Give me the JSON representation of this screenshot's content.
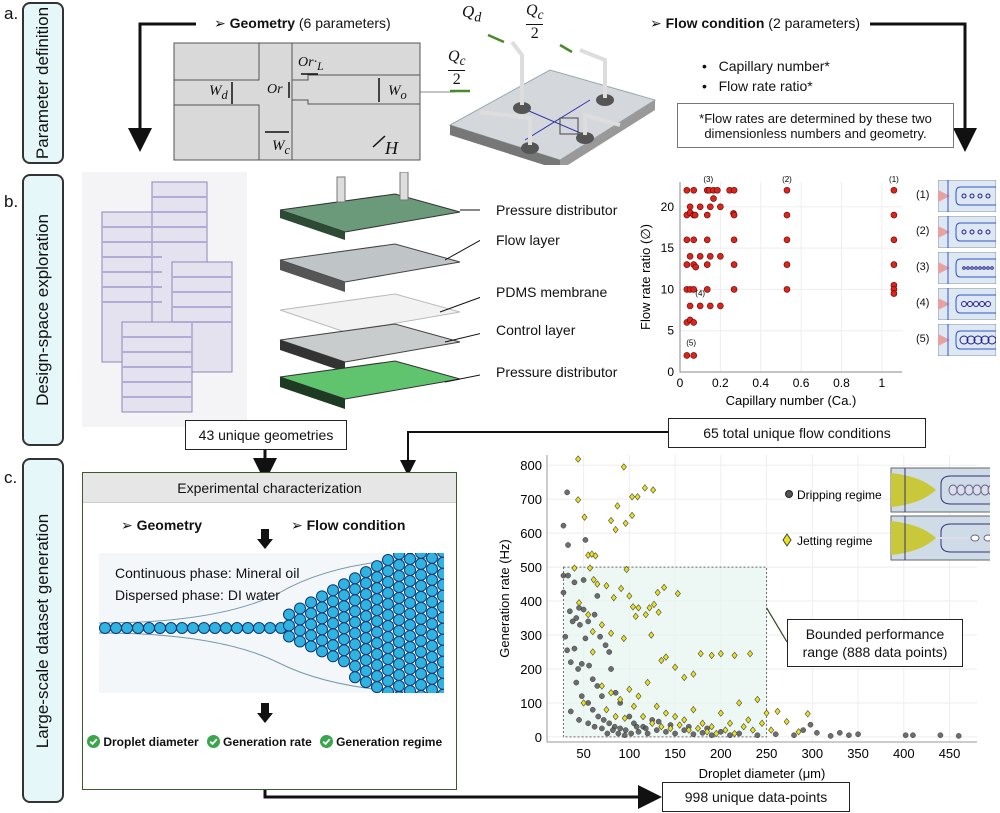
{
  "panels": {
    "a": "a.",
    "b": "b.",
    "c": "c."
  },
  "side_labels": {
    "a": "Parameter definition",
    "b": "Design-space exploration",
    "c": "Large-scale dataset generation"
  },
  "geometry": {
    "heading_bold": "Geometry",
    "heading_rest": " (6 parameters)",
    "symbols": {
      "wd": "W",
      "wd_sub": "d",
      "or": "Or",
      "orl": "Or",
      "orl_sub": "L",
      "wo": "W",
      "wo_sub": "o",
      "wc": "W",
      "wc_sub": "c",
      "h": "H"
    }
  },
  "chip": {
    "qd": "Q",
    "qd_sub": "d",
    "qc": "Q",
    "qc_sub": "c",
    "two": "2"
  },
  "flow": {
    "heading_bold": "Flow condition",
    "heading_rest": " (2 parameters)",
    "bullets": [
      "Capillary number*",
      "Flow rate ratio*"
    ],
    "note": "*Flow rates are determined by these two dimensionless numbers and geometry."
  },
  "layers": [
    "Pressure distributor",
    "Flow layer",
    "PDMS membrane",
    "Control layer",
    "Pressure distributor"
  ],
  "arrows": {
    "geometries": "43 unique geometries",
    "flow_conditions": "65 total unique flow conditions",
    "datapoints": "998 unique data-points"
  },
  "experiment": {
    "title": "Experimental characterization",
    "geometry": "Geometry",
    "flow": "Flow condition",
    "continuous": "Continuous phase: Mineral oil",
    "dispersed": "Dispersed phase: DI water",
    "outputs": [
      "Droplet diameter",
      "Generation rate",
      "Generation regime"
    ],
    "check_color": "#3aa54a"
  },
  "callout": "Bounded performance range (888 data points)",
  "inset_labels": [
    "(1)",
    "(2)",
    "(3)",
    "(4)",
    "(5)"
  ],
  "chart_data": [
    {
      "type": "scatter",
      "xlabel": "Capillary number (Ca.)",
      "ylabel": "Flow rate ratio (∅)",
      "xlim": [
        0,
        1.1
      ],
      "ylim": [
        0,
        23
      ],
      "xticks": [
        0,
        0.2,
        0.4,
        0.6,
        0.8,
        1
      ],
      "xtick_labels": [
        "0",
        "0.2",
        "0.4",
        "0.6",
        "0.8",
        "1"
      ],
      "yticks": [
        0,
        5,
        10,
        15,
        20
      ],
      "grid": true,
      "color": "#d8261c",
      "points": [
        [
          0.034,
          22
        ],
        [
          0.034,
          19
        ],
        [
          0.034,
          16
        ],
        [
          0.034,
          13
        ],
        [
          0.034,
          10
        ],
        [
          0.034,
          6
        ],
        [
          0.034,
          2
        ],
        [
          0.05,
          20
        ],
        [
          0.05,
          19.3
        ],
        [
          0.05,
          14
        ],
        [
          0.05,
          10
        ],
        [
          0.05,
          8
        ],
        [
          0.05,
          6.3
        ],
        [
          0.068,
          22
        ],
        [
          0.068,
          19
        ],
        [
          0.068,
          16
        ],
        [
          0.068,
          13
        ],
        [
          0.068,
          10
        ],
        [
          0.068,
          6
        ],
        [
          0.068,
          2
        ],
        [
          0.075,
          19
        ],
        [
          0.078,
          12.7
        ],
        [
          0.1,
          20
        ],
        [
          0.1,
          14
        ],
        [
          0.1,
          8
        ],
        [
          0.135,
          22
        ],
        [
          0.135,
          19
        ],
        [
          0.135,
          16
        ],
        [
          0.135,
          13
        ],
        [
          0.135,
          10
        ],
        [
          0.145,
          22
        ],
        [
          0.15,
          20
        ],
        [
          0.15,
          14
        ],
        [
          0.15,
          8
        ],
        [
          0.166,
          21
        ],
        [
          0.166,
          22
        ],
        [
          0.185,
          22
        ],
        [
          0.2,
          20
        ],
        [
          0.2,
          14
        ],
        [
          0.2,
          8
        ],
        [
          0.246,
          22
        ],
        [
          0.268,
          22
        ],
        [
          0.265,
          19.2
        ],
        [
          0.268,
          19
        ],
        [
          0.268,
          16
        ],
        [
          0.268,
          13
        ],
        [
          0.268,
          10
        ],
        [
          0.53,
          22
        ],
        [
          0.53,
          19
        ],
        [
          0.53,
          16
        ],
        [
          0.53,
          13
        ],
        [
          0.53,
          10
        ],
        [
          1.06,
          22
        ],
        [
          1.06,
          19
        ],
        [
          1.06,
          16
        ],
        [
          1.06,
          13
        ],
        [
          1.06,
          10.5
        ],
        [
          1.06,
          10
        ],
        [
          1.06,
          9.5
        ]
      ],
      "annotations": [
        {
          "text": "(3)",
          "x": 0.14,
          "y": 23
        },
        {
          "text": "(2)",
          "x": 0.53,
          "y": 23
        },
        {
          "text": "(1)",
          "x": 1.06,
          "y": 23
        },
        {
          "text": "(4)",
          "x": 0.1,
          "y": 9.2
        },
        {
          "text": "(5)",
          "x": 0.055,
          "y": 3.2
        }
      ]
    },
    {
      "type": "scatter",
      "xlabel": "Droplet diameter (μm)",
      "ylabel": "Generation rate (Hz)",
      "xlim": [
        10,
        480
      ],
      "ylim": [
        -15,
        830
      ],
      "xticks": [
        50,
        100,
        150,
        200,
        250,
        300,
        350,
        400,
        450
      ],
      "yticks": [
        0,
        100,
        200,
        300,
        400,
        500,
        600,
        700,
        800
      ],
      "grid": true,
      "bounded_range": {
        "x": [
          28,
          250
        ],
        "y": [
          0,
          500
        ]
      },
      "series": [
        {
          "name": "Dripping regime",
          "color": "#555555",
          "marker": "circle",
          "points": [
            [
              28,
              622
            ],
            [
              32,
              720
            ],
            [
              33,
              565
            ],
            [
              52,
              580
            ],
            [
              28,
              475
            ],
            [
              28,
              425
            ],
            [
              33,
              475
            ],
            [
              40,
              455
            ],
            [
              50,
              462
            ],
            [
              45,
              380
            ],
            [
              50,
              375
            ],
            [
              35,
              370
            ],
            [
              38,
              340
            ],
            [
              42,
              350
            ],
            [
              46,
              330
            ],
            [
              55,
              340
            ],
            [
              52,
              290
            ],
            [
              62,
              360
            ],
            [
              65,
              415
            ],
            [
              68,
              295
            ],
            [
              30,
              295
            ],
            [
              32,
              255
            ],
            [
              36,
              220
            ],
            [
              40,
              260
            ],
            [
              44,
              200
            ],
            [
              48,
              215
            ],
            [
              56,
              210
            ],
            [
              60,
              170
            ],
            [
              65,
              150
            ],
            [
              70,
              120
            ],
            [
              74,
              270
            ],
            [
              78,
              250
            ],
            [
              80,
              200
            ],
            [
              85,
              130
            ],
            [
              90,
              100
            ],
            [
              36,
              75
            ],
            [
              42,
              160
            ],
            [
              48,
              120
            ],
            [
              55,
              100
            ],
            [
              60,
              80
            ],
            [
              66,
              60
            ],
            [
              72,
              50
            ],
            [
              78,
              40
            ],
            [
              84,
              30
            ],
            [
              90,
              25
            ],
            [
              96,
              20
            ],
            [
              100,
              60
            ],
            [
              105,
              40
            ],
            [
              110,
              15
            ],
            [
              115,
              30
            ],
            [
              120,
              10
            ],
            [
              125,
              50
            ],
            [
              130,
              20
            ],
            [
              140,
              15
            ],
            [
              150,
              10
            ],
            [
              160,
              20
            ],
            [
              170,
              8
            ],
            [
              180,
              12
            ],
            [
              190,
              5
            ],
            [
              200,
              15
            ],
            [
              210,
              5
            ],
            [
              220,
              10
            ],
            [
              240,
              5
            ],
            [
              260,
              8
            ],
            [
              280,
              5
            ],
            [
              290,
              20
            ],
            [
              298,
              36
            ],
            [
              305,
              12
            ],
            [
              320,
              3
            ],
            [
              330,
              12
            ],
            [
              340,
              5
            ],
            [
              350,
              8
            ],
            [
              402,
              5
            ],
            [
              410,
              5
            ],
            [
              440,
              5
            ],
            [
              460,
              3
            ],
            [
              45,
              50
            ],
            [
              55,
              40
            ],
            [
              62,
              30
            ],
            [
              70,
              25
            ],
            [
              76,
              10
            ],
            [
              82,
              20
            ],
            [
              88,
              10
            ],
            [
              95,
              5
            ],
            [
              102,
              10
            ],
            [
              108,
              30
            ],
            [
              118,
              25
            ],
            [
              132,
              45
            ],
            [
              145,
              35
            ],
            [
              165,
              30
            ],
            [
              185,
              25
            ]
          ]
        },
        {
          "name": "Jetting regime",
          "color": "#e8e21a",
          "marker": "diamond",
          "points": [
            [
              44,
              818
            ],
            [
              94,
              795
            ],
            [
              44,
              698
            ],
            [
              117,
              733
            ],
            [
              126,
              727
            ],
            [
              103,
              707
            ],
            [
              109,
              707
            ],
            [
              87,
              680
            ],
            [
              51,
              647
            ],
            [
              103,
              652
            ],
            [
              80,
              637
            ],
            [
              96,
              629
            ],
            [
              85,
              610
            ],
            [
              55,
              535
            ],
            [
              59,
              538
            ],
            [
              63,
              533
            ],
            [
              40,
              497
            ],
            [
              57,
              497
            ],
            [
              97,
              493
            ],
            [
              61,
              463
            ],
            [
              65,
              450
            ],
            [
              75,
              445
            ],
            [
              91,
              437
            ],
            [
              100,
              415
            ],
            [
              83,
              410
            ],
            [
              131,
              425
            ],
            [
              138,
              440
            ],
            [
              153,
              422
            ],
            [
              122,
              380
            ],
            [
              127,
              390
            ],
            [
              104,
              383
            ],
            [
              110,
              380
            ],
            [
              132,
              367
            ],
            [
              118,
              360
            ],
            [
              45,
              395
            ],
            [
              55,
              360
            ],
            [
              60,
              310
            ],
            [
              70,
              330
            ],
            [
              80,
              305
            ],
            [
              94,
              290
            ],
            [
              107,
              355
            ],
            [
              124,
              300
            ],
            [
              140,
              235
            ],
            [
              135,
              225
            ],
            [
              150,
              205
            ],
            [
              160,
              175
            ],
            [
              170,
              185
            ],
            [
              178,
              245
            ],
            [
              190,
              240
            ],
            [
              200,
              245
            ],
            [
              215,
              240
            ],
            [
              232,
              245
            ],
            [
              70,
              150
            ],
            [
              80,
              130
            ],
            [
              90,
              110
            ],
            [
              100,
              140
            ],
            [
              110,
              120
            ],
            [
              120,
              160
            ],
            [
              130,
              90
            ],
            [
              140,
              70
            ],
            [
              150,
              60
            ],
            [
              160,
              50
            ],
            [
              170,
              80
            ],
            [
              180,
              40
            ],
            [
              190,
              30
            ],
            [
              200,
              70
            ],
            [
              210,
              40
            ],
            [
              220,
              100
            ],
            [
              230,
              50
            ],
            [
              240,
              110
            ],
            [
              250,
              70
            ],
            [
              255,
              20
            ],
            [
              262,
              75
            ],
            [
              272,
              45
            ],
            [
              285,
              15
            ],
            [
              295,
              68
            ],
            [
              50,
              100
            ],
            [
              60,
              250
            ],
            [
              75,
              80
            ],
            [
              85,
              60
            ],
            [
              95,
              55
            ],
            [
              105,
              90
            ],
            [
              115,
              60
            ],
            [
              125,
              40
            ],
            [
              135,
              30
            ],
            [
              145,
              25
            ],
            [
              155,
              35
            ],
            [
              165,
              20
            ],
            [
              175,
              25
            ],
            [
              185,
              15
            ],
            [
              195,
              10
            ],
            [
              205,
              20
            ],
            [
              215,
              10
            ],
            [
              225,
              30
            ],
            [
              235,
              20
            ],
            [
              245,
              40
            ]
          ]
        }
      ]
    }
  ]
}
